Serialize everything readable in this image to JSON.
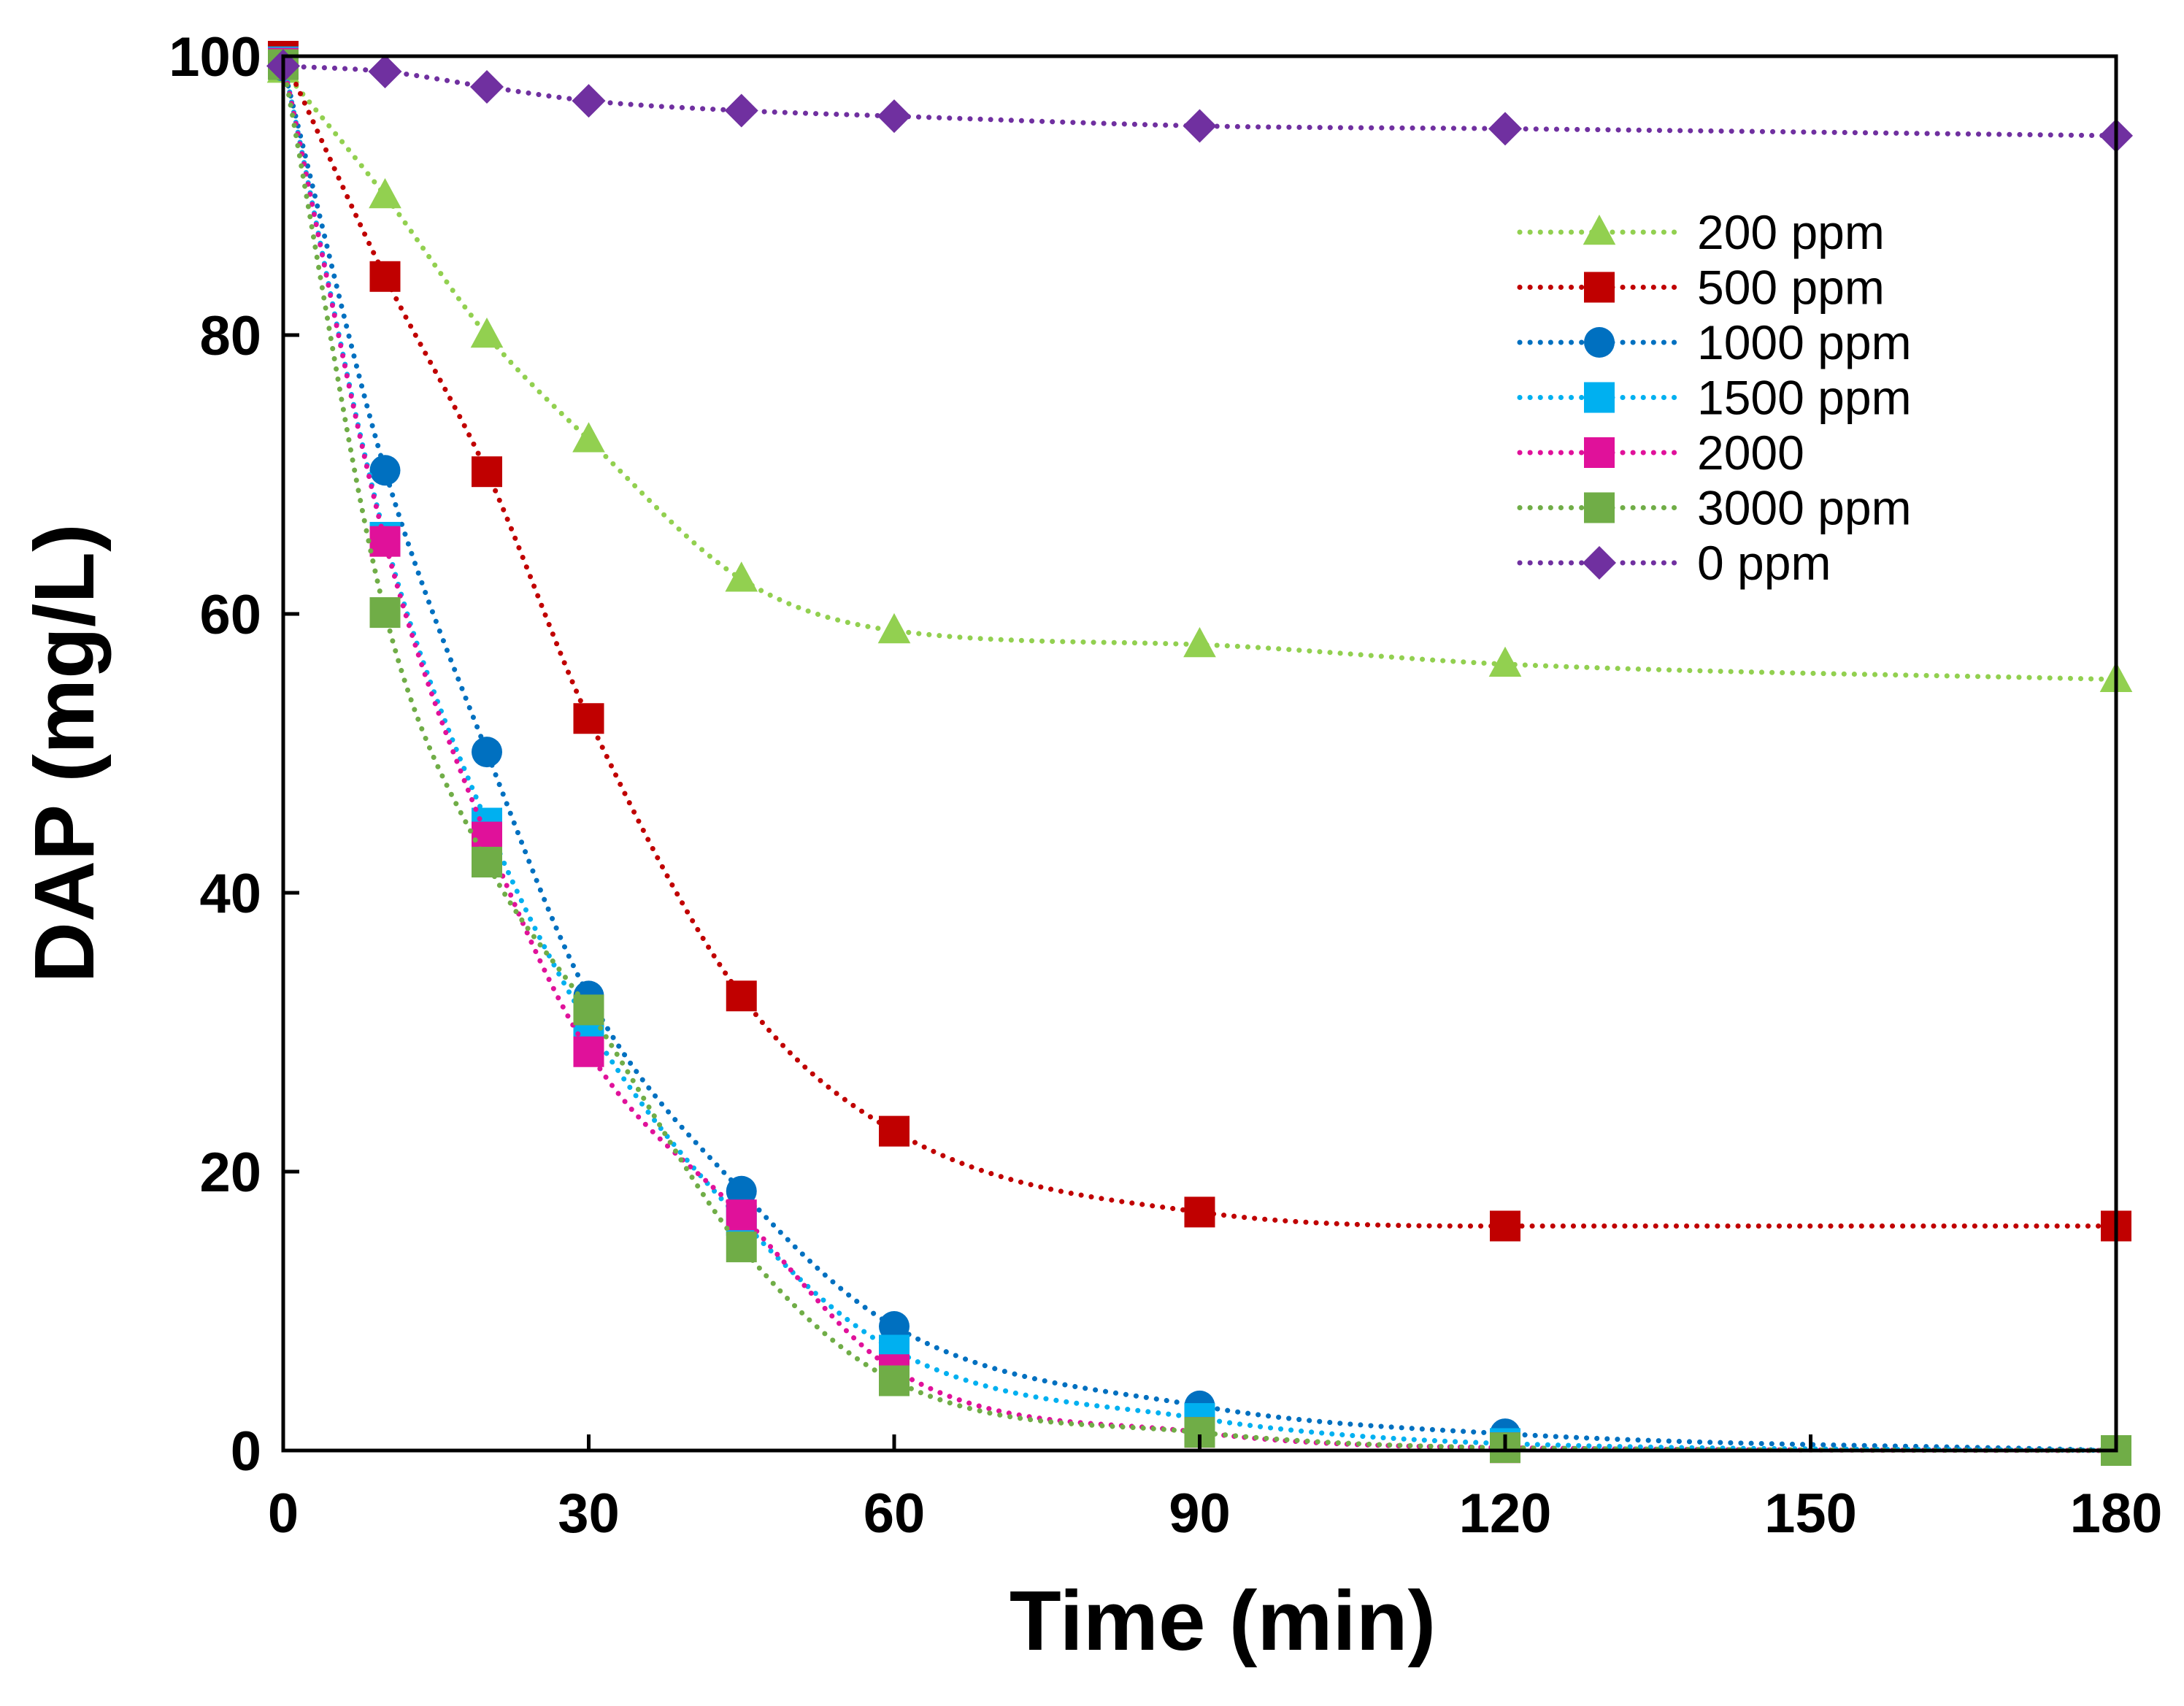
{
  "chart_data": {
    "type": "scatter",
    "title": "",
    "xlabel": "Time (min)",
    "ylabel": "DAP (mg/L)",
    "xlim": [
      0,
      180
    ],
    "ylim": [
      0,
      100
    ],
    "xticks": [
      0,
      30,
      60,
      90,
      120,
      150,
      180
    ],
    "yticks": [
      0,
      20,
      40,
      60,
      80,
      100
    ],
    "grid": false,
    "legend_position": "top-right",
    "x": [
      0,
      10,
      20,
      30,
      45,
      60,
      90,
      120,
      180
    ],
    "series": [
      {
        "name": "200 ppm",
        "marker": "triangle",
        "color": "#92d050",
        "values": [
          99,
          90,
          80,
          72.5,
          62.5,
          58.8,
          57.8,
          56.4,
          55.3
        ]
      },
      {
        "name": "500 ppm",
        "marker": "square",
        "color": "#c00000",
        "values": [
          100,
          84.2,
          70.2,
          52.5,
          32.6,
          22.9,
          17.1,
          16.1,
          16.1
        ]
      },
      {
        "name": "1000 ppm",
        "marker": "circle",
        "color": "#0070c0",
        "values": [
          99.3,
          70.3,
          50.1,
          32.6,
          18.6,
          8.9,
          3.2,
          1.2,
          0
        ]
      },
      {
        "name": "1500 ppm",
        "marker": "square",
        "color": "#00b0f0",
        "values": [
          99.6,
          65.5,
          45,
          30.5,
          16.5,
          7.2,
          2.3,
          0.5,
          0
        ]
      },
      {
        "name": "2000",
        "marker": "square",
        "color": "#e0119a",
        "values": [
          99.5,
          65.2,
          44,
          28.6,
          16.9,
          5.8,
          1.3,
          0.2,
          0
        ]
      },
      {
        "name": "3000 ppm",
        "marker": "square",
        "color": "#70ad47",
        "values": [
          99.4,
          60.1,
          42.2,
          31.6,
          14.6,
          5,
          1.3,
          0.2,
          0
        ]
      },
      {
        "name": "0 ppm",
        "marker": "diamond",
        "color": "#7030a0",
        "values": [
          99.3,
          98.9,
          97.8,
          96.8,
          96.1,
          95.7,
          95,
          94.8,
          94.3
        ]
      }
    ]
  }
}
